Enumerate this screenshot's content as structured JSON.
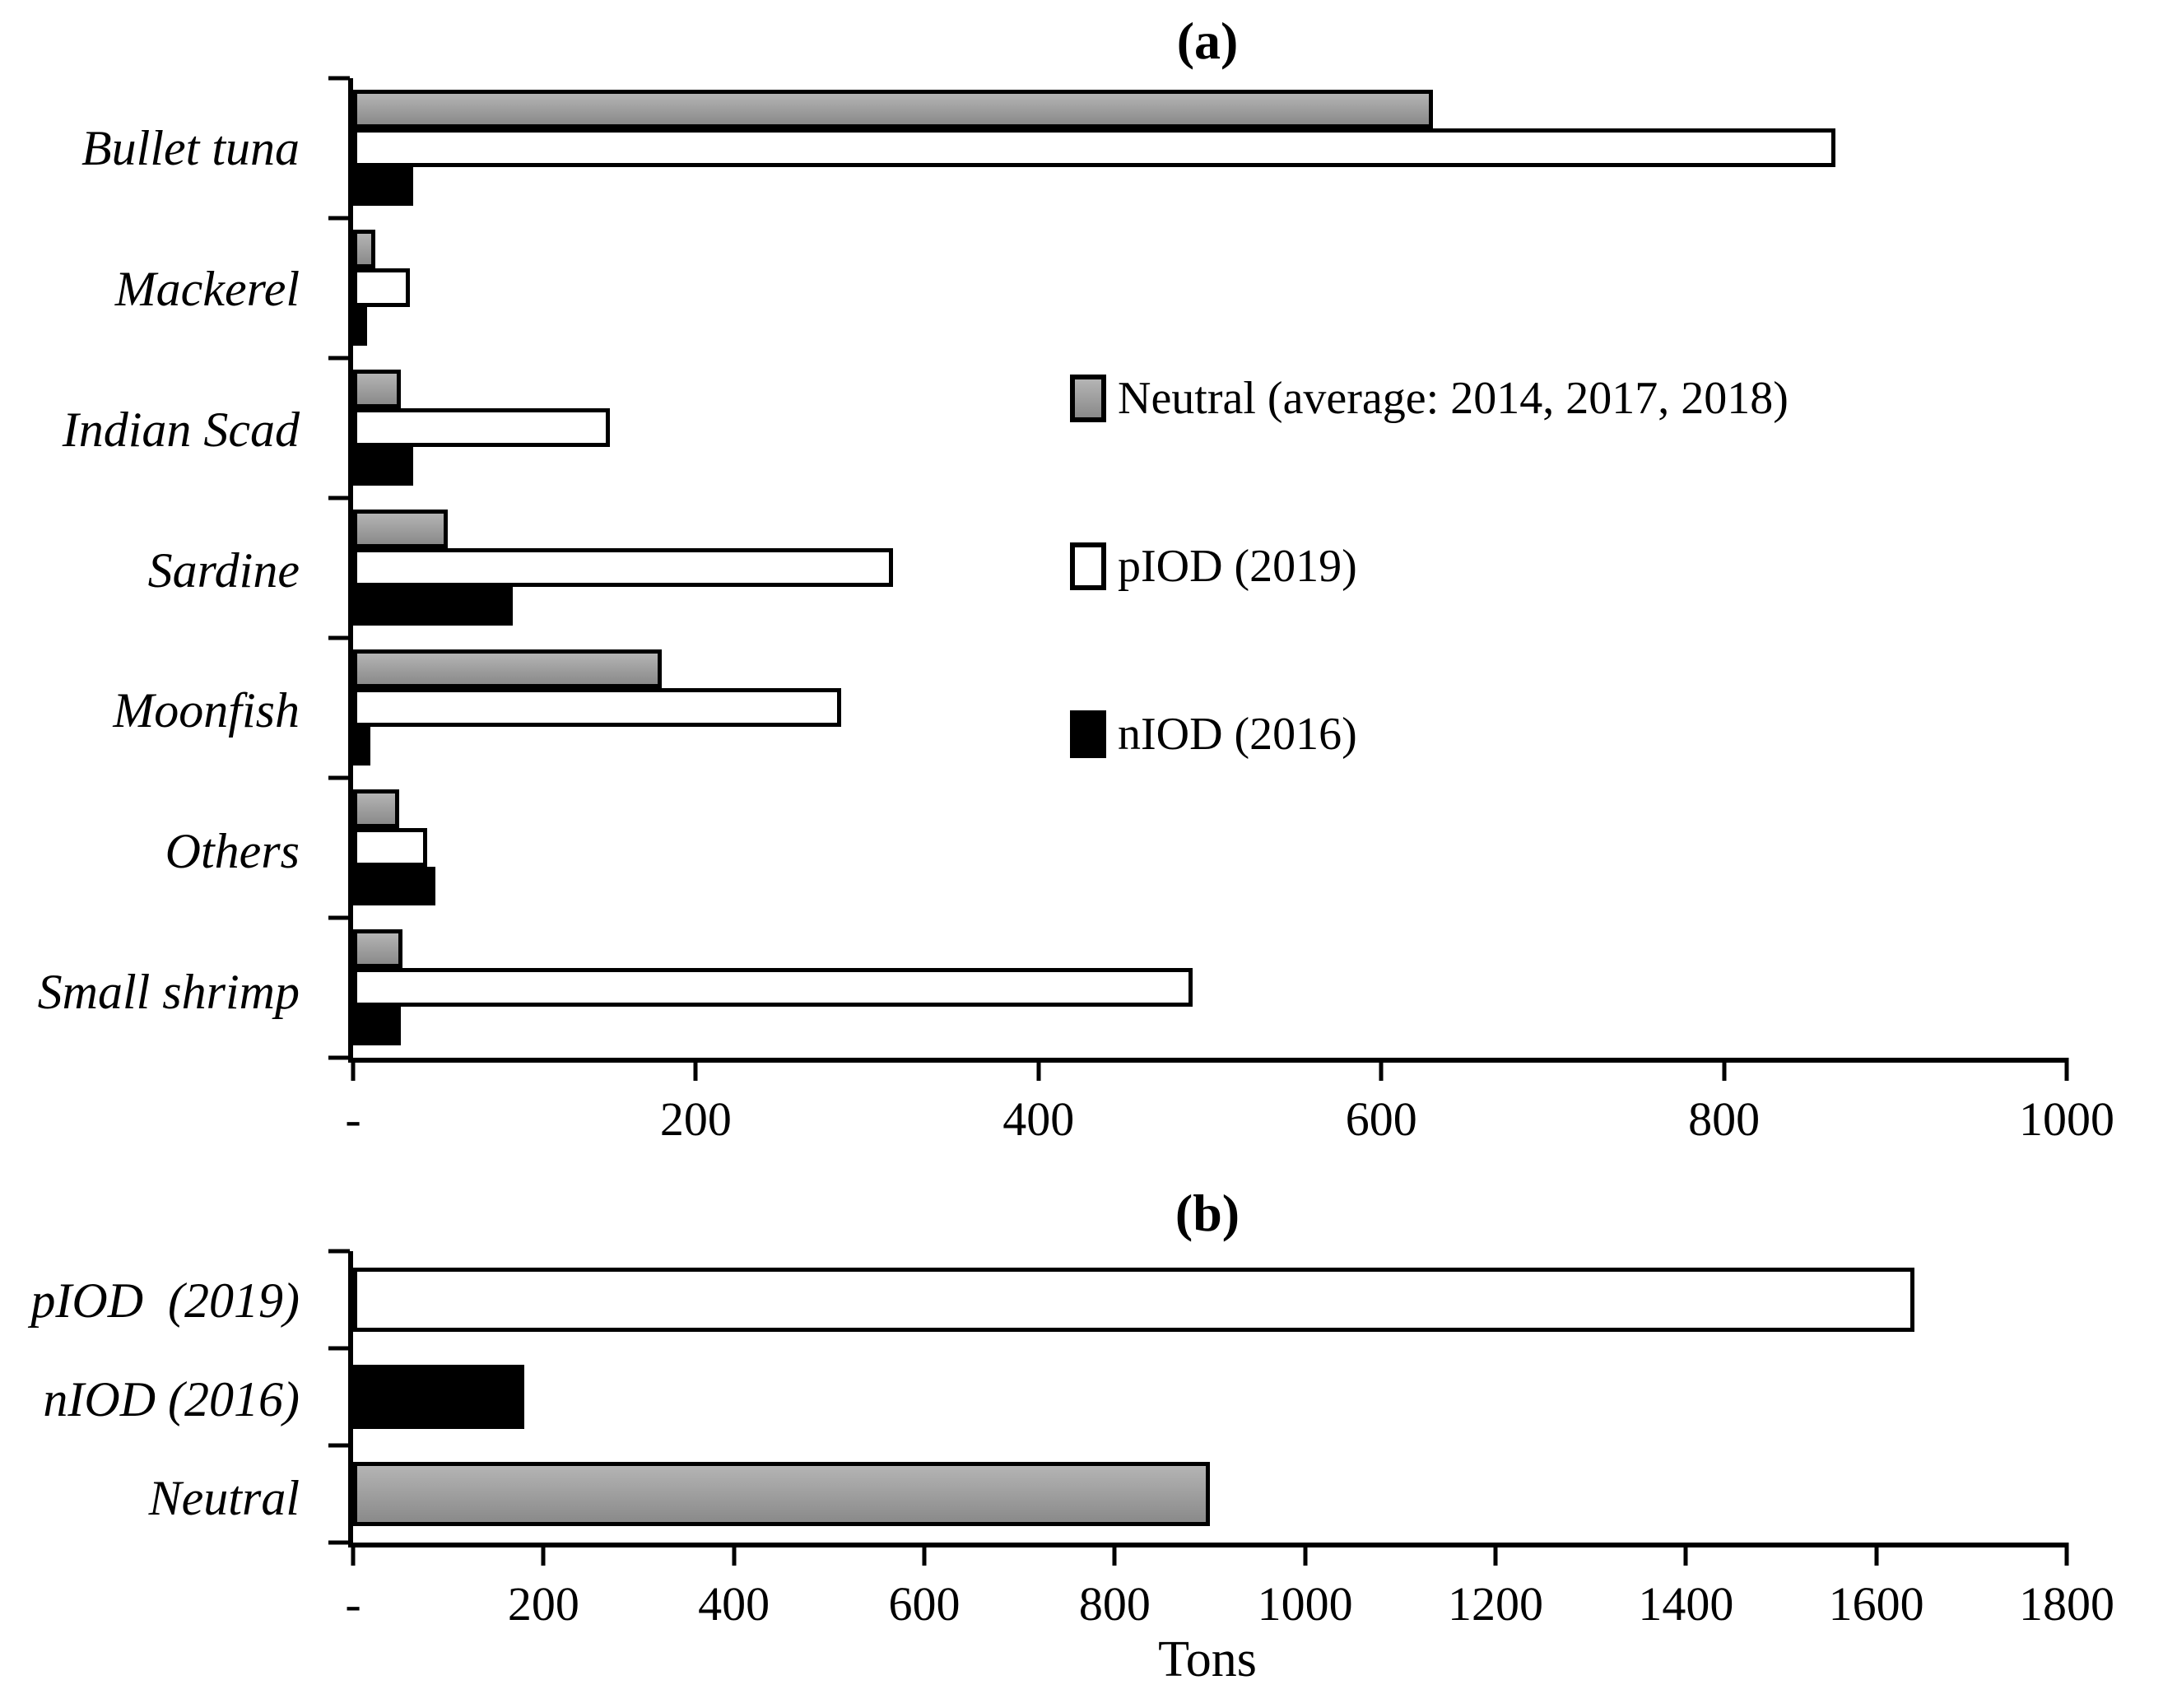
{
  "colors": {
    "neutral_fill_top": "#b4b4b4",
    "neutral_fill_bottom": "#8a8a8a",
    "piod_fill": "#ffffff",
    "niod_fill": "#000000",
    "outline": "#000000"
  },
  "chart_data": [
    {
      "id": "a",
      "type": "bar",
      "orientation": "horizontal",
      "title": "(a)",
      "xlabel": "",
      "xlim": [
        0,
        1000
      ],
      "xticks": [
        "-",
        "200",
        "400",
        "600",
        "800",
        "1000"
      ],
      "grid": false,
      "legend_position": "center-right-inside",
      "categories": [
        "Bullet tuna",
        "Mackerel",
        "Indian Scad",
        "Sardine",
        "Moonfish",
        "Others",
        "Small shrimp"
      ],
      "series": [
        {
          "name": "Neutral (average: 2014, 2017, 2018)",
          "color": "neutral",
          "values": [
            630,
            13,
            28,
            55,
            180,
            27,
            29
          ]
        },
        {
          "name": "pIOD (2019)",
          "color": "piod",
          "values": [
            865,
            33,
            150,
            315,
            285,
            43,
            490
          ]
        },
        {
          "name": "nIOD (2016)",
          "color": "niod",
          "values": [
            35,
            8,
            35,
            93,
            10,
            48,
            28
          ]
        }
      ],
      "legend": {
        "items": [
          {
            "label": "Neutral (average: 2014, 2017, 2018)",
            "color": "neutral"
          },
          {
            "label": "pIOD (2019)",
            "color": "piod"
          },
          {
            "label": "nIOD (2016)",
            "color": "niod"
          }
        ]
      }
    },
    {
      "id": "b",
      "type": "bar",
      "orientation": "horizontal",
      "title": "(b)",
      "xlabel": "Tons",
      "xlim": [
        0,
        1800
      ],
      "xticks": [
        "-",
        "200",
        "400",
        "600",
        "800",
        "1000",
        "1200",
        "1400",
        "1600",
        "1800"
      ],
      "grid": false,
      "bars": [
        {
          "category": "pIOD  (2019)",
          "value": 1640,
          "color": "piod"
        },
        {
          "category": "nIOD (2016)",
          "value": 180,
          "color": "niod"
        },
        {
          "category": "Neutral",
          "value": 900,
          "color": "neutral"
        }
      ]
    }
  ]
}
